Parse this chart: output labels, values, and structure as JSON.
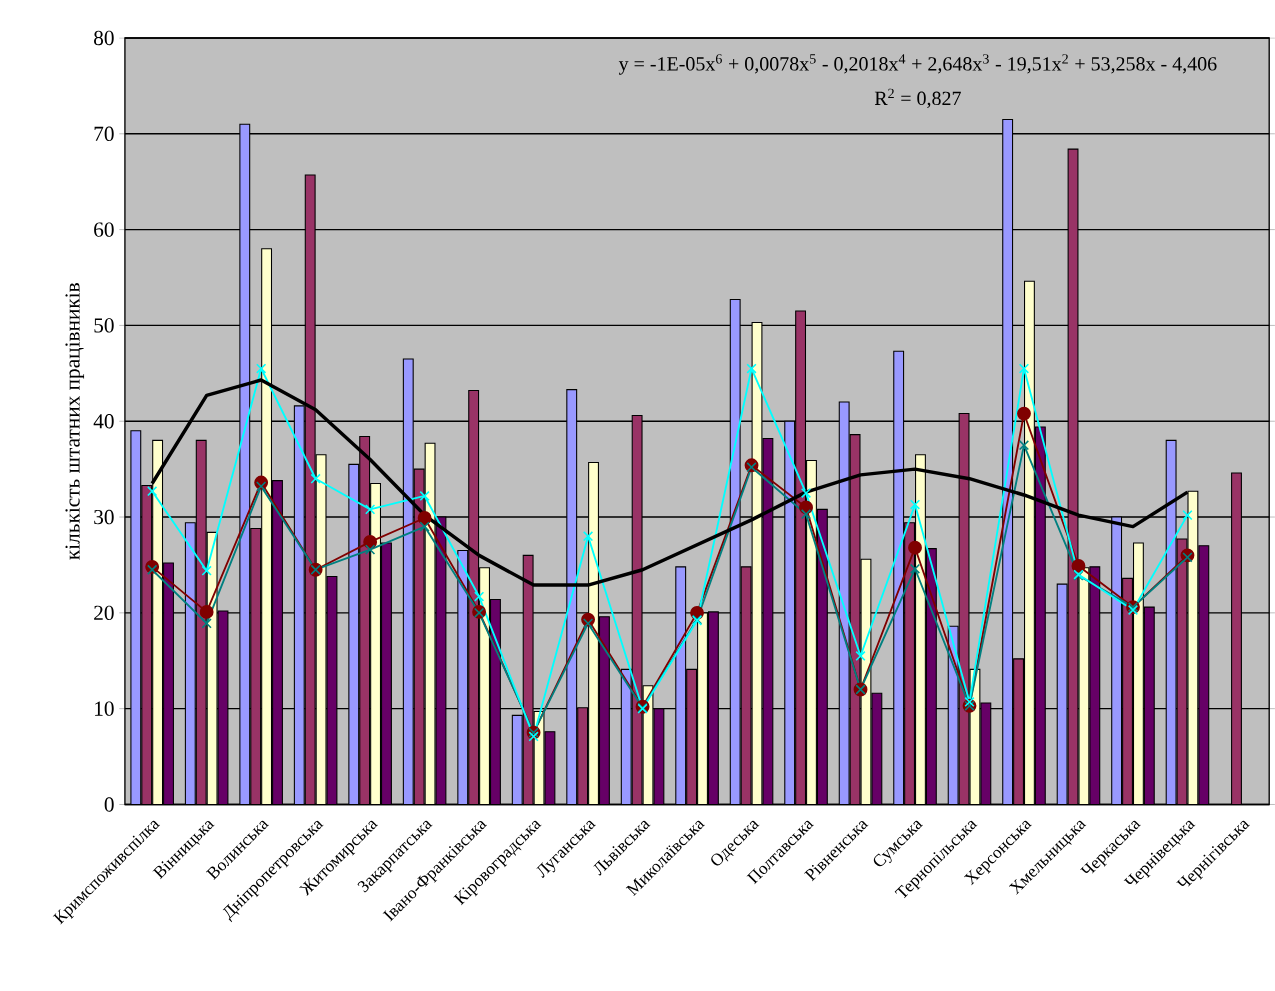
{
  "chart_data": {
    "type": "bar",
    "ylabel": "кількість  штатних  працівників",
    "annotations": [
      "y = -1E-05x$^{6}$ + 0,0078x$^{5}$ - 0,2018x$^{4}$ + 2,648x$^{3}$ - 19,51x$^{2}$ + 53,258x - 4,406",
      "R$^{2}$ = 0,827"
    ],
    "categories": [
      "Кримспоживспілка",
      "Вінницька",
      "Волинська",
      "Дніпропетровська",
      "Житомирська",
      "Закарпатська",
      "Івано-Франківська",
      "Кіровоградська",
      "Луганська",
      "Львівська",
      "Миколаївська",
      "Одеська",
      "Полтавська",
      "Рівненська",
      "Сумська",
      "Тернопільська",
      "Херсонська",
      "Хмельницька",
      "Черкаська",
      "Чернівецька",
      "Чернігівська"
    ],
    "ylim": [
      0,
      80
    ],
    "yticks": [
      0,
      10,
      20,
      30,
      40,
      50,
      60,
      70,
      80
    ],
    "grid": "y",
    "series": [
      {
        "color": "#9999ff",
        "values": [
          39,
          29.4,
          71,
          41.6,
          35.5,
          46.5,
          26.5,
          9.3,
          43.3,
          14.1,
          24.8,
          52.7,
          40,
          42,
          47.3,
          18.6,
          71.5,
          23,
          30,
          38,
          null
        ]
      },
      {
        "color": "#993366",
        "values": [
          33.3,
          38,
          28.8,
          65.7,
          38.4,
          35,
          43.2,
          26,
          10.1,
          40.6,
          14.1,
          24.8,
          51.5,
          38.6,
          29.4,
          40.8,
          15.2,
          68.4,
          23.6,
          27.7,
          34.6
        ]
      },
      {
        "color": "#ffffcc",
        "values": [
          38,
          28.4,
          58,
          36.5,
          33.5,
          37.7,
          24.7,
          9.7,
          35.7,
          12.4,
          20,
          50.3,
          35.9,
          25.6,
          36.5,
          14.1,
          54.6,
          24.7,
          27.3,
          32.7,
          null
        ]
      },
      {
        "color": "#660066",
        "values": [
          25.2,
          20.2,
          33.8,
          23.8,
          27.3,
          30,
          21.4,
          7.6,
          19.6,
          10,
          20.1,
          38.2,
          30.8,
          11.6,
          26.7,
          10.6,
          39.4,
          24.8,
          20.6,
          27,
          null
        ]
      },
      {
        "type": "line",
        "color": "#800000",
        "marker": "circle",
        "values": [
          24.8,
          20.1,
          33.6,
          24.5,
          27.4,
          29.9,
          20.1,
          7.5,
          19.3,
          10.2,
          20,
          35.4,
          31,
          12,
          26.8,
          10.3,
          40.8,
          24.9,
          20.6,
          26,
          null
        ]
      },
      {
        "type": "line",
        "color": "#008080",
        "marker": "cross",
        "values": [
          24.5,
          18.9,
          33.2,
          24.5,
          26.6,
          29,
          20,
          7.5,
          18.9,
          10.1,
          19.3,
          35.2,
          30.3,
          12,
          24.6,
          10.3,
          37.5,
          23.9,
          20.6,
          25.8,
          null
        ]
      },
      {
        "type": "line",
        "color": "#00ffff",
        "marker": "cross",
        "values": [
          32.7,
          24.4,
          45.5,
          34,
          30.8,
          32.2,
          21.7,
          7.1,
          28,
          10,
          19.2,
          45.5,
          32.5,
          15.5,
          31.3,
          10.7,
          45.5,
          24,
          20.3,
          30.2,
          null
        ]
      },
      {
        "type": "line",
        "color": "#000000",
        "marker": "none",
        "values": [
          33.5,
          42.7,
          44.3,
          41.2,
          36,
          30.2,
          26,
          22.9,
          22.9,
          24.5,
          27.1,
          29.7,
          32.6,
          34.4,
          35,
          34,
          32.3,
          30.2,
          29,
          32.6,
          null
        ]
      }
    ]
  }
}
